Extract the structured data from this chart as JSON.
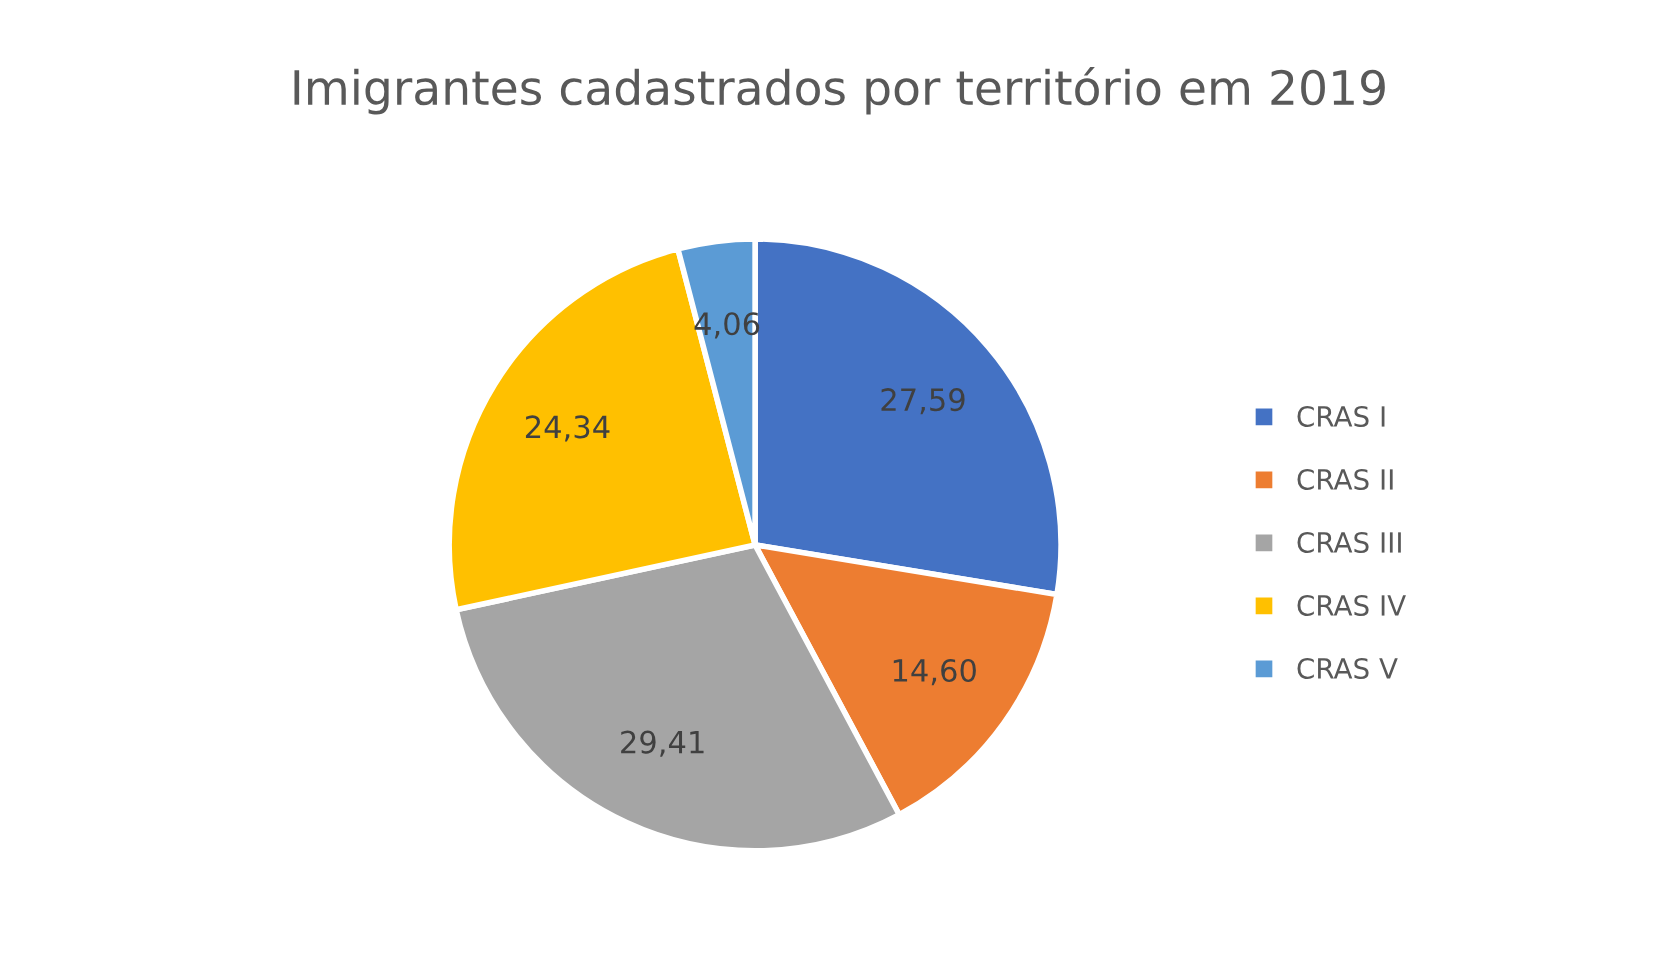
{
  "chart_data": {
    "type": "pie",
    "title": "Imigrantes cadastrados por território em 2019",
    "categories": [
      "CRAS I",
      "CRAS II",
      "CRAS III",
      "CRAS IV",
      "CRAS V"
    ],
    "values": [
      27.59,
      14.6,
      29.41,
      24.34,
      4.06
    ],
    "value_labels": [
      "27,59",
      "14,60",
      "29,41",
      "24,34",
      "4,06"
    ],
    "colors": [
      "#4472c4",
      "#ed7d31",
      "#a5a5a5",
      "#ffc000",
      "#5b9bd5"
    ],
    "legend": "right"
  }
}
